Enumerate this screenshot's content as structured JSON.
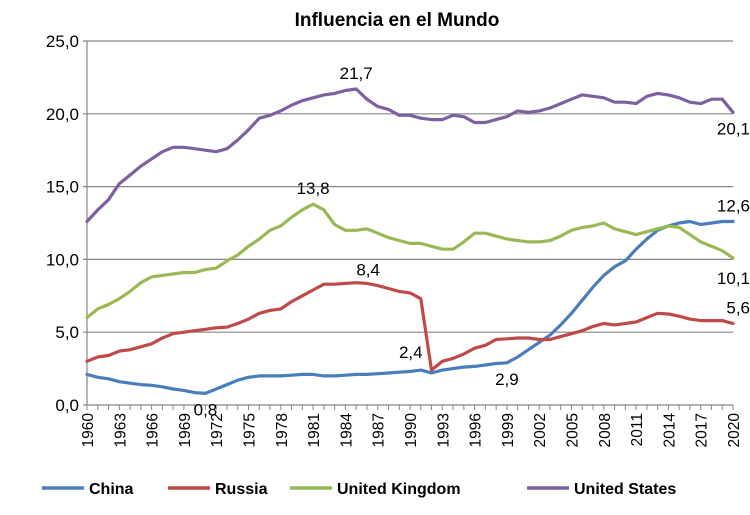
{
  "chart_data": {
    "type": "line",
    "title": "Influencia en el Mundo",
    "xlabel": "",
    "ylabel": "",
    "ylim": [
      0,
      25
    ],
    "yticks": [
      "0,0",
      "5,0",
      "10,0",
      "15,0",
      "20,0",
      "25,0"
    ],
    "xlim": [
      1960,
      2020
    ],
    "xtick_labels": [
      "1960",
      "1963",
      "1966",
      "1969",
      "1972",
      "1975",
      "1978",
      "1981",
      "1984",
      "1987",
      "1990",
      "1993",
      "1996",
      "1999",
      "2002",
      "2005",
      "2008",
      "2011",
      "2014",
      "2017",
      "2020"
    ],
    "grid": "horizontal",
    "legend": "bottom",
    "series": [
      {
        "name": "China",
        "color": "#4a7ebb",
        "values": [
          2.1,
          1.9,
          1.8,
          1.6,
          1.5,
          1.4,
          1.35,
          1.25,
          1.1,
          1.0,
          0.85,
          0.8,
          1.1,
          1.4,
          1.7,
          1.9,
          2.0,
          2.0,
          2.0,
          2.05,
          2.1,
          2.1,
          2.0,
          2.0,
          2.05,
          2.1,
          2.1,
          2.15,
          2.2,
          2.25,
          2.3,
          2.4,
          2.2,
          2.4,
          2.5,
          2.6,
          2.65,
          2.75,
          2.85,
          2.9,
          3.3,
          3.8,
          4.3,
          4.8,
          5.5,
          6.3,
          7.2,
          8.1,
          8.9,
          9.5,
          9.9,
          10.7,
          11.4,
          12.0,
          12.3,
          12.5,
          12.6,
          12.4,
          12.5,
          12.6,
          12.6
        ]
      },
      {
        "name": "Russia",
        "color": "#be4b48",
        "values": [
          3.0,
          3.3,
          3.4,
          3.7,
          3.8,
          4.0,
          4.2,
          4.6,
          4.9,
          5.0,
          5.1,
          5.2,
          5.3,
          5.35,
          5.6,
          5.9,
          6.3,
          6.5,
          6.6,
          7.1,
          7.5,
          7.9,
          8.3,
          8.3,
          8.35,
          8.4,
          8.35,
          8.2,
          8.0,
          7.8,
          7.7,
          7.3,
          2.4,
          3.0,
          3.2,
          3.5,
          3.9,
          4.1,
          4.5,
          4.55,
          4.6,
          4.6,
          4.5,
          4.5,
          4.7,
          4.9,
          5.1,
          5.4,
          5.6,
          5.5,
          5.6,
          5.7,
          6.0,
          6.3,
          6.25,
          6.1,
          5.9,
          5.8,
          5.8,
          5.8,
          5.6
        ]
      },
      {
        "name": "United Kingdom",
        "color": "#98b954",
        "values": [
          6.0,
          6.6,
          6.9,
          7.3,
          7.8,
          8.4,
          8.8,
          8.9,
          9.0,
          9.1,
          9.1,
          9.3,
          9.4,
          9.9,
          10.3,
          10.9,
          11.4,
          12.0,
          12.3,
          12.9,
          13.4,
          13.8,
          13.4,
          12.4,
          12.0,
          12.0,
          12.1,
          11.8,
          11.5,
          11.3,
          11.1,
          11.1,
          10.9,
          10.7,
          10.7,
          11.2,
          11.8,
          11.8,
          11.6,
          11.4,
          11.3,
          11.2,
          11.2,
          11.3,
          11.6,
          12.0,
          12.2,
          12.3,
          12.5,
          12.1,
          11.9,
          11.7,
          11.9,
          12.1,
          12.3,
          12.2,
          11.7,
          11.2,
          10.9,
          10.6,
          10.1
        ]
      },
      {
        "name": "United States",
        "color": "#7d60a0",
        "values": [
          12.6,
          13.4,
          14.1,
          15.2,
          15.8,
          16.4,
          16.9,
          17.4,
          17.7,
          17.7,
          17.6,
          17.5,
          17.4,
          17.6,
          18.2,
          18.9,
          19.7,
          19.9,
          20.2,
          20.6,
          20.9,
          21.1,
          21.3,
          21.4,
          21.6,
          21.7,
          21.0,
          20.5,
          20.3,
          19.9,
          19.9,
          19.7,
          19.6,
          19.6,
          19.9,
          19.8,
          19.4,
          19.4,
          19.6,
          19.8,
          20.2,
          20.1,
          20.2,
          20.4,
          20.7,
          21.0,
          21.3,
          21.2,
          21.1,
          20.8,
          20.8,
          20.7,
          21.2,
          21.4,
          21.3,
          21.1,
          20.8,
          20.7,
          21.0,
          21.0,
          20.1
        ]
      }
    ],
    "annotations": [
      {
        "text": "21,7",
        "series": "United States",
        "x": 1985
      },
      {
        "text": "13,8",
        "series": "United Kingdom",
        "x": 1981
      },
      {
        "text": "8,4",
        "series": "Russia",
        "x": 1985
      },
      {
        "text": "0,8",
        "series": "China",
        "x": 1971
      },
      {
        "text": "2,4",
        "series": "China",
        "x": 1991
      },
      {
        "text": "2,9",
        "series": "China",
        "x": 1999
      },
      {
        "text": "20,1",
        "series": "United States",
        "x": 2020
      },
      {
        "text": "12,6",
        "series": "China",
        "x": 2020
      },
      {
        "text": "10,1",
        "series": "United Kingdom",
        "x": 2020
      },
      {
        "text": "5,6",
        "series": "Russia",
        "x": 2020
      }
    ]
  }
}
